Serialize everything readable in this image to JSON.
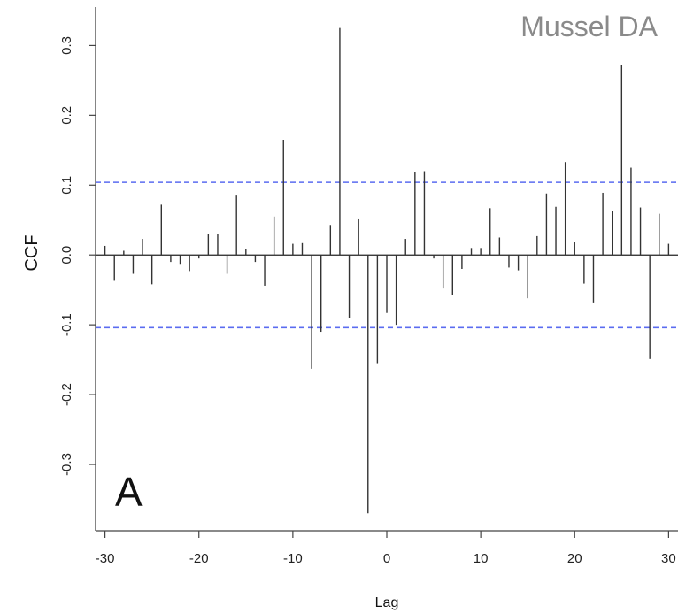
{
  "chart_data": {
    "type": "bar",
    "title": "Mussel DA",
    "panel_label": "A",
    "xlabel": "Lag",
    "ylabel": "CCF",
    "xlim": [
      -31,
      31
    ],
    "ylim": [
      -0.395,
      0.355
    ],
    "xticks": [
      -30,
      -20,
      -10,
      0,
      10,
      20,
      30
    ],
    "yticks": [
      -0.3,
      -0.2,
      -0.1,
      0.0,
      0.1,
      0.2,
      0.3
    ],
    "x": [
      -30,
      -29,
      -28,
      -27,
      -26,
      -25,
      -24,
      -23,
      -22,
      -21,
      -20,
      -19,
      -18,
      -17,
      -16,
      -15,
      -14,
      -13,
      -12,
      -11,
      -10,
      -9,
      -8,
      -7,
      -6,
      -5,
      -4,
      -3,
      -2,
      -1,
      0,
      1,
      2,
      3,
      4,
      5,
      6,
      7,
      8,
      9,
      10,
      11,
      12,
      13,
      14,
      15,
      16,
      17,
      18,
      19,
      20,
      21,
      22,
      23,
      24,
      25,
      26,
      27,
      28,
      29,
      30
    ],
    "values": [
      0.013,
      -0.037,
      0.006,
      -0.027,
      0.023,
      -0.042,
      0.072,
      -0.01,
      -0.014,
      -0.023,
      -0.005,
      0.03,
      0.03,
      -0.027,
      0.085,
      0.008,
      -0.01,
      -0.044,
      0.055,
      0.165,
      0.016,
      0.017,
      -0.163,
      -0.11,
      0.043,
      0.325,
      -0.09,
      0.051,
      -0.37,
      -0.155,
      -0.083,
      -0.1,
      0.023,
      0.119,
      0.12,
      -0.005,
      -0.048,
      -0.058,
      -0.02,
      0.01,
      0.01,
      0.067,
      0.025,
      -0.018,
      -0.022,
      -0.062,
      0.027,
      0.088,
      0.069,
      0.133,
      0.018,
      -0.041,
      -0.068,
      0.089,
      0.063,
      0.272,
      0.125,
      0.068,
      -0.149,
      0.059,
      0.016
    ],
    "confidence_bounds": [
      0.104,
      -0.104
    ],
    "zero_line": true,
    "grid": false,
    "colors": {
      "bars": "#333333",
      "confidence": "#5b6cf0",
      "axis": "#444444",
      "title": "#8a8a8a"
    }
  }
}
